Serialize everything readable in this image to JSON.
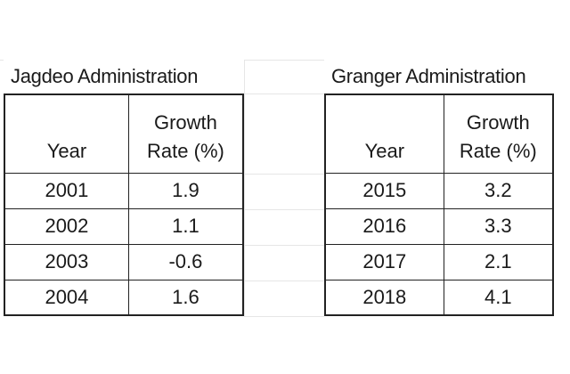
{
  "tables": [
    {
      "title": "Jagdeo Administration",
      "headers": {
        "year": "Year",
        "rate_line1": "Growth",
        "rate_line2": "Rate (%)"
      },
      "rows": [
        {
          "year": "2001",
          "rate": "1.9"
        },
        {
          "year": "2002",
          "rate": "1.1"
        },
        {
          "year": "2003",
          "rate": "-0.6"
        },
        {
          "year": "2004",
          "rate": "1.6"
        }
      ]
    },
    {
      "title": "Granger Administration",
      "headers": {
        "year": "Year",
        "rate_line1": "Growth",
        "rate_line2": "Rate (%)"
      },
      "rows": [
        {
          "year": "2015",
          "rate": "3.2"
        },
        {
          "year": "2016",
          "rate": "3.3"
        },
        {
          "year": "2017",
          "rate": "2.1"
        },
        {
          "year": "2018",
          "rate": "4.1"
        }
      ]
    }
  ]
}
